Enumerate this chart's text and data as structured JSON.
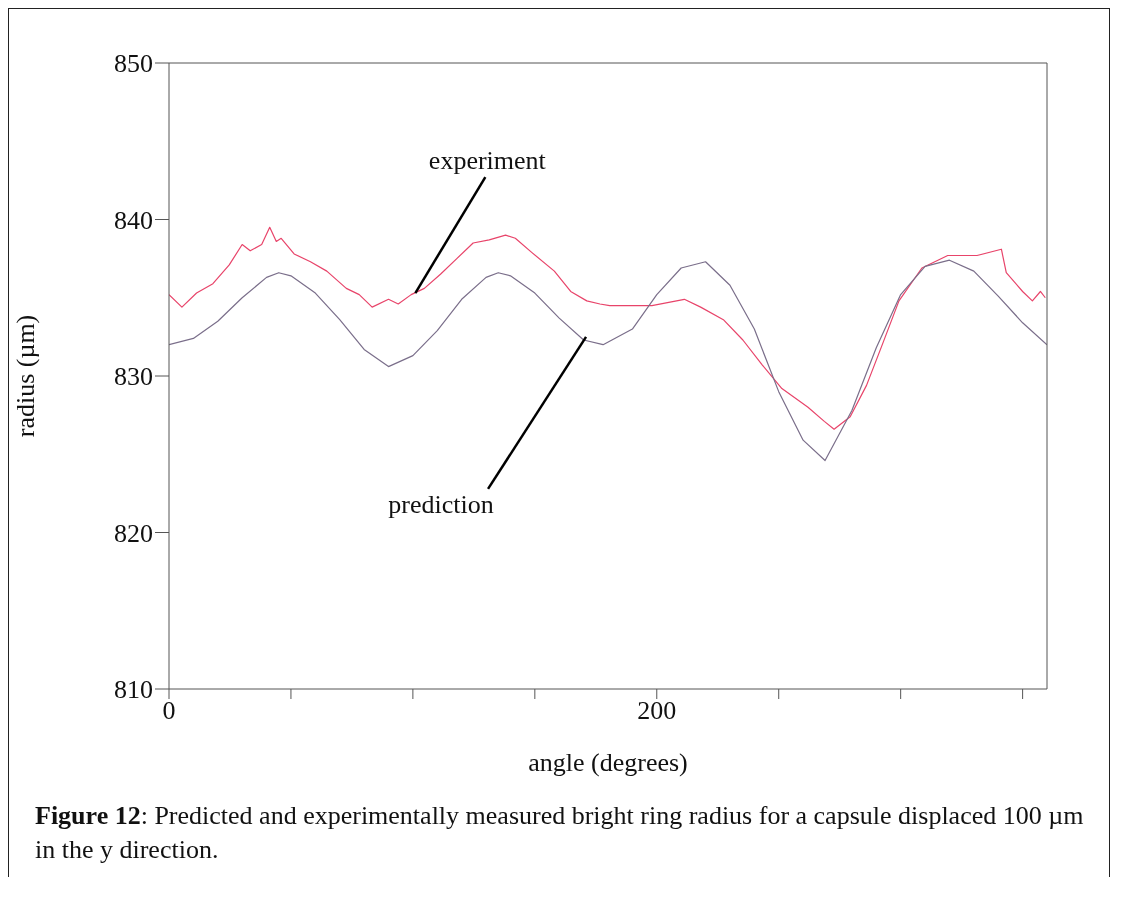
{
  "chart_data": {
    "type": "line",
    "xlabel": "angle (degrees)",
    "ylabel": "radius (µm)",
    "xlim": [
      0,
      360
    ],
    "xticks": [
      0,
      {
        "value": 50,
        "label": null
      },
      {
        "value": 100,
        "label": null
      },
      {
        "value": 150,
        "label": null
      },
      200,
      {
        "value": 250,
        "label": null
      },
      {
        "value": 300,
        "label": null
      },
      {
        "value": 350,
        "label": null
      }
    ],
    "ylim": [
      810,
      850
    ],
    "yticks": [
      810,
      820,
      830,
      840,
      850
    ],
    "grid": false,
    "marker": "none",
    "line_style": "solid",
    "series": [
      {
        "color": "#e8446a",
        "x": [
          0,
          5.3,
          11.3,
          18,
          24.7,
          30,
          33.3,
          38,
          41.3,
          44,
          46,
          51.3,
          58,
          64.7,
          72.7,
          78,
          83.3,
          90,
          94,
          99.3,
          104.7,
          111.3,
          118,
          124.7,
          131.3,
          138,
          142,
          148.7,
          158,
          164.7,
          171.3,
          176.7,
          180.7,
          190,
          198,
          211.3,
          218,
          227.3,
          235.3,
          243.3,
          251.3,
          262,
          268.7,
          272.7,
          279.3,
          286,
          292.7,
          299.3,
          308.7,
          319.3,
          331.3,
          341.3,
          343.3,
          350,
          354,
          357.3,
          359.3
        ],
        "values": [
          835.2,
          834.4,
          835.3,
          835.9,
          837.1,
          838.4,
          838.0,
          838.4,
          839.5,
          838.6,
          838.8,
          837.8,
          837.3,
          836.7,
          835.6,
          835.2,
          834.4,
          834.9,
          834.6,
          835.2,
          835.6,
          836.5,
          837.5,
          838.5,
          838.7,
          839.0,
          838.8,
          837.9,
          836.7,
          835.4,
          834.8,
          834.6,
          834.5,
          834.5,
          834.5,
          834.9,
          834.4,
          833.6,
          832.3,
          830.7,
          829.2,
          828.0,
          827.1,
          826.6,
          827.4,
          829.4,
          832.1,
          834.8,
          836.9,
          837.7,
          837.7,
          838.1,
          836.6,
          835.4,
          834.8,
          835.4,
          835.0
        ]
      },
      {
        "color": "#7a6e8a",
        "x": [
          0,
          10,
          20,
          30,
          40,
          45,
          50,
          60,
          70,
          80,
          90,
          100,
          110,
          120,
          130,
          135,
          140,
          150,
          160,
          170,
          178,
          190,
          200,
          210,
          220,
          230,
          240,
          250,
          260,
          269,
          280,
          290,
          300,
          310,
          320,
          330,
          340,
          350,
          360
        ],
        "values": [
          832.0,
          832.4,
          833.5,
          835.0,
          836.3,
          836.6,
          836.4,
          835.3,
          833.6,
          831.7,
          830.6,
          831.3,
          832.9,
          834.9,
          836.3,
          836.6,
          836.4,
          835.3,
          833.7,
          832.3,
          832.0,
          833.0,
          835.2,
          836.9,
          837.3,
          835.8,
          833.0,
          829.0,
          825.9,
          824.6,
          827.8,
          831.8,
          835.2,
          837.0,
          837.4,
          836.7,
          835.1,
          833.4,
          832.0
        ]
      }
    ],
    "annotations": [
      {
        "text": "experiment",
        "x": 101,
        "y": 835.3
      },
      {
        "text": "prediction",
        "x": 171,
        "y": 832.5
      },
      "Figure 12: Predicted and experimentally measured bright ring radius for a capsule displaced 100 µm in the y direction."
    ]
  }
}
